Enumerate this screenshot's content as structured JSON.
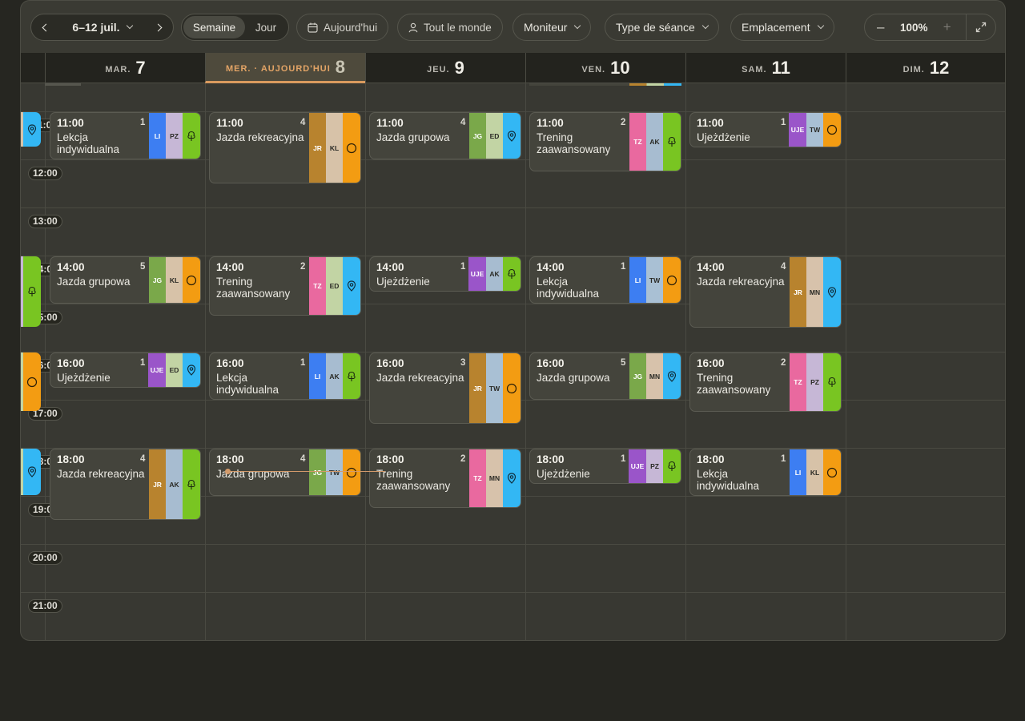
{
  "toolbar": {
    "prev_label": "‹",
    "range_label": "6–12 juil.",
    "next_label": "›",
    "view_week": "Semaine",
    "view_day": "Jour",
    "today_label": "Aujourd'hui",
    "people_label": "Tout le monde",
    "filter_moniteur": "Moniteur",
    "filter_type": "Type de séance",
    "filter_emplacement": "Emplacement",
    "zoom_out": "–",
    "zoom_value": "100%",
    "zoom_in": "+"
  },
  "days": [
    {
      "wd": "MAR.",
      "dn": "7"
    },
    {
      "wd": "MER. · AUJOURD'HUI",
      "dn": "8"
    },
    {
      "wd": "JEU.",
      "dn": "9"
    },
    {
      "wd": "VEN.",
      "dn": "10"
    },
    {
      "wd": "SAM.",
      "dn": "11"
    },
    {
      "wd": "DIM.",
      "dn": "12"
    }
  ],
  "hours": [
    "11:00",
    "12:00",
    "13:00",
    "14:00",
    "15:00",
    "16:00",
    "17:00",
    "18:00",
    "19:00",
    "20:00",
    "21:00"
  ],
  "colors": {
    "accent_today": "#e3a466",
    "tag_LI": "#3d7ef2",
    "tag_PZ": "#c6b7d6",
    "tag_JR": "#b8832e",
    "tag_KL": "#d7c2a8",
    "tag_JG": "#7aa84a",
    "tag_ED": "#c2d4a4",
    "tag_TZ": "#e9699f",
    "tag_AK": "#a7bcd0",
    "tag_UJE": "#9a55c9",
    "tag_TW": "#a9c0d4",
    "tag_MN": "#d7c2ab",
    "loc_tree": "#79c522",
    "loc_circle": "#f39c12",
    "loc_pin": "#33b7f4"
  },
  "events": [
    {
      "day": 0,
      "time": "11:00",
      "count": "1",
      "title": "Lekcja indywidualna",
      "tags": [
        "LI",
        "PZ"
      ],
      "loc": "tree-icon"
    },
    {
      "day": 1,
      "time": "11:00",
      "count": "4",
      "title": "Jazda rekreacyjna",
      "tags": [
        "JR",
        "KL"
      ],
      "loc": "circle-icon"
    },
    {
      "day": 2,
      "time": "11:00",
      "count": "4",
      "title": "Jazda grupowa",
      "tags": [
        "JG",
        "ED"
      ],
      "loc": "pin-icon"
    },
    {
      "day": 3,
      "time": "11:00",
      "count": "2",
      "title": "Trening zaawansowany",
      "tags": [
        "TZ",
        "AK"
      ],
      "loc": "tree-icon"
    },
    {
      "day": 4,
      "time": "11:00",
      "count": "1",
      "title": "Ujeżdżenie",
      "tags": [
        "UJE",
        "TW"
      ],
      "loc": "circle-icon"
    },
    {
      "day": 0,
      "time": "14:00",
      "count": "5",
      "title": "Jazda grupowa",
      "tags": [
        "JG",
        "KL"
      ],
      "loc": "circle-icon"
    },
    {
      "day": 1,
      "time": "14:00",
      "count": "2",
      "title": "Trening zaawansowany",
      "tags": [
        "TZ",
        "ED"
      ],
      "loc": "pin-icon"
    },
    {
      "day": 2,
      "time": "14:00",
      "count": "1",
      "title": "Ujeżdżenie",
      "tags": [
        "UJE",
        "AK"
      ],
      "loc": "tree-icon"
    },
    {
      "day": 3,
      "time": "14:00",
      "count": "1",
      "title": "Lekcja indywidualna",
      "tags": [
        "LI",
        "TW"
      ],
      "loc": "circle-icon"
    },
    {
      "day": 4,
      "time": "14:00",
      "count": "4",
      "title": "Jazda rekreacyjna",
      "tags": [
        "JR",
        "MN"
      ],
      "loc": "pin-icon"
    },
    {
      "day": 0,
      "time": "16:00",
      "count": "1",
      "title": "Ujeżdżenie",
      "tags": [
        "UJE",
        "ED"
      ],
      "loc": "pin-icon"
    },
    {
      "day": 1,
      "time": "16:00",
      "count": "1",
      "title": "Lekcja indywidualna",
      "tags": [
        "LI",
        "AK"
      ],
      "loc": "tree-icon"
    },
    {
      "day": 2,
      "time": "16:00",
      "count": "3",
      "title": "Jazda rekreacyjna",
      "tags": [
        "JR",
        "TW"
      ],
      "loc": "circle-icon"
    },
    {
      "day": 3,
      "time": "16:00",
      "count": "5",
      "title": "Jazda grupowa",
      "tags": [
        "JG",
        "MN"
      ],
      "loc": "pin-icon"
    },
    {
      "day": 4,
      "time": "16:00",
      "count": "2",
      "title": "Trening zaawansowany",
      "tags": [
        "TZ",
        "PZ"
      ],
      "loc": "tree-icon"
    },
    {
      "day": 0,
      "time": "18:00",
      "count": "4",
      "title": "Jazda rekreacyjna",
      "tags": [
        "JR",
        "AK"
      ],
      "loc": "tree-icon"
    },
    {
      "day": 1,
      "time": "18:00",
      "count": "4",
      "title": "Jazda grupowa",
      "tags": [
        "JG",
        "TW"
      ],
      "loc": "circle-icon"
    },
    {
      "day": 2,
      "time": "18:00",
      "count": "2",
      "title": "Trening zaawansowany",
      "tags": [
        "TZ",
        "MN"
      ],
      "loc": "pin-icon"
    },
    {
      "day": 3,
      "time": "18:00",
      "count": "1",
      "title": "Ujeżdżenie",
      "tags": [
        "UJE",
        "PZ"
      ],
      "loc": "tree-icon"
    },
    {
      "day": 4,
      "time": "18:00",
      "count": "1",
      "title": "Lekcja indywidualna",
      "tags": [
        "LI",
        "KL"
      ],
      "loc": "circle-icon"
    }
  ]
}
